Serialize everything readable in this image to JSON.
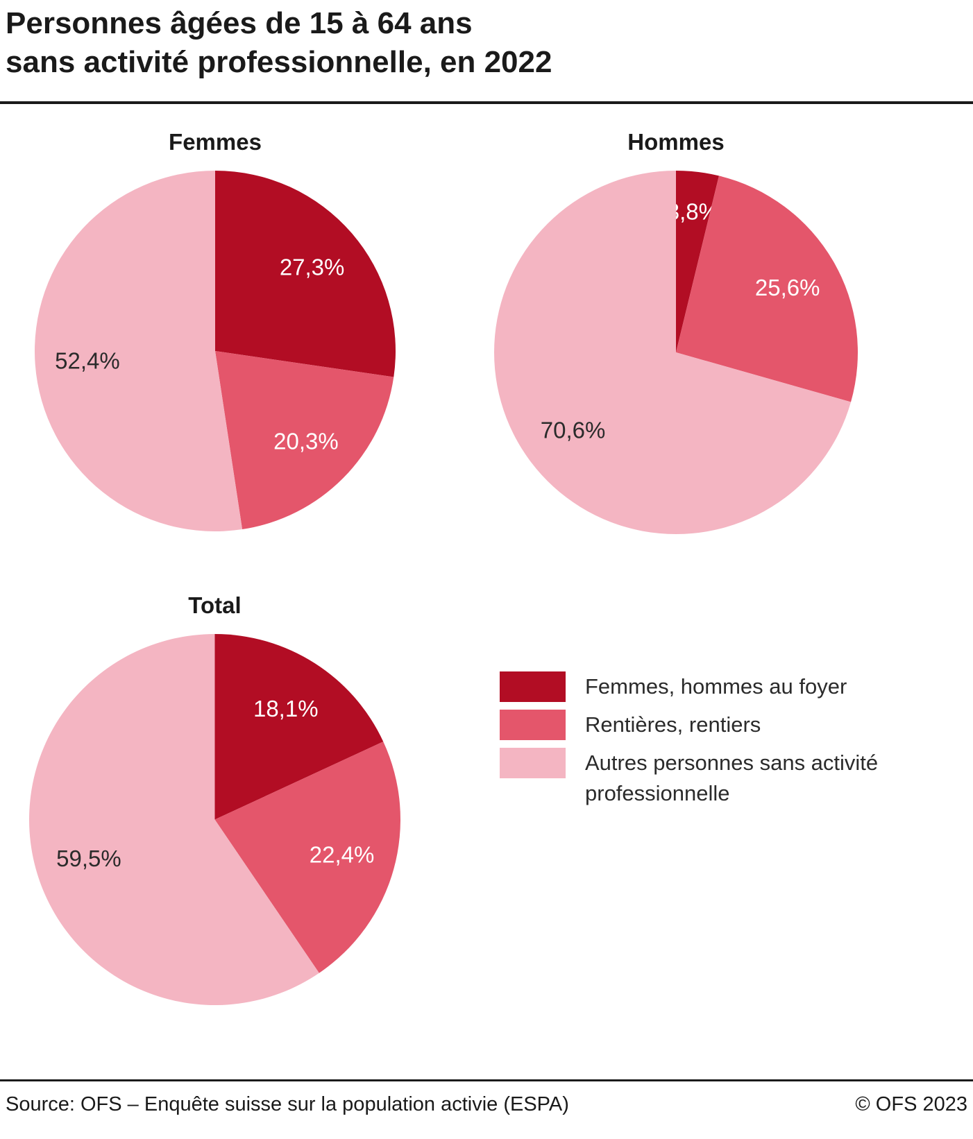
{
  "title": {
    "line1": "Personnes âgées de 15 à 64 ans",
    "line2": "sans activité professionnelle, en 2022"
  },
  "colors": {
    "dark_red": "#b20d24",
    "medium_red": "#e4566b",
    "light_pink": "#f4b5c2",
    "label_light": "#ffffff",
    "label_dark": "#2b2b2b"
  },
  "legend": {
    "items": [
      {
        "label": "Femmes, hommes au foyer",
        "color": "dark_red"
      },
      {
        "label": "Rentières, rentiers",
        "color": "medium_red"
      },
      {
        "label": "Autres personnes sans activité professionnelle",
        "color": "light_pink"
      }
    ]
  },
  "chart_data": [
    {
      "type": "pie",
      "title": "Femmes",
      "start_angle": 0,
      "direction": "clockwise",
      "slices": [
        {
          "label": "Femmes, hommes au foyer",
          "value": 27.3,
          "display": "27,3%",
          "color": "dark_red",
          "label_color": "label_light"
        },
        {
          "label": "Rentières, rentiers",
          "value": 20.3,
          "display": "20,3%",
          "color": "medium_red",
          "label_color": "label_light"
        },
        {
          "label": "Autres personnes sans activité professionnelle",
          "value": 52.4,
          "display": "52,4%",
          "color": "light_pink",
          "label_color": "label_dark"
        }
      ]
    },
    {
      "type": "pie",
      "title": "Hommes",
      "start_angle": 0,
      "direction": "clockwise",
      "slices": [
        {
          "label": "Femmes, hommes au foyer",
          "value": 3.8,
          "display": "3,8%",
          "color": "dark_red",
          "label_color": "label_light",
          "label_r": 0.78
        },
        {
          "label": "Rentières, rentiers",
          "value": 25.6,
          "display": "25,6%",
          "color": "medium_red",
          "label_color": "label_light"
        },
        {
          "label": "Autres personnes sans activité professionnelle",
          "value": 70.6,
          "display": "70,6%",
          "color": "light_pink",
          "label_color": "label_dark"
        }
      ]
    },
    {
      "type": "pie",
      "title": "Total",
      "start_angle": 0,
      "direction": "clockwise",
      "slices": [
        {
          "label": "Femmes, hommes au foyer",
          "value": 18.1,
          "display": "18,1%",
          "color": "dark_red",
          "label_color": "label_light"
        },
        {
          "label": "Rentières, rentiers",
          "value": 22.4,
          "display": "22,4%",
          "color": "medium_red",
          "label_color": "label_light"
        },
        {
          "label": "Autres personnes sans activité professionnelle",
          "value": 59.5,
          "display": "59,5%",
          "color": "light_pink",
          "label_color": "label_dark"
        }
      ]
    }
  ],
  "footer": {
    "source": "Source: OFS – Enquête suisse sur la population activie (ESPA)",
    "copyright": "© OFS 2023"
  }
}
